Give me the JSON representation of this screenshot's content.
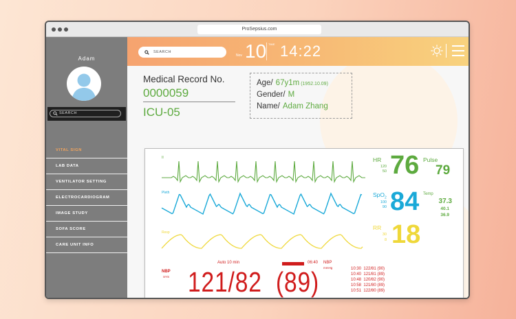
{
  "browser": {
    "url": "ProSepsius.com"
  },
  "sidebar": {
    "user_name": "Adam",
    "search_placeholder": "SEARCH",
    "items": [
      {
        "label": "VITAL SIGN",
        "active": true
      },
      {
        "label": "LAB DATA"
      },
      {
        "label": "VENTILATOR SETTING"
      },
      {
        "label": "ELECTROCARDIOGRAM"
      },
      {
        "label": "IMAGE STUDY"
      },
      {
        "label": "SOFA SCORE"
      },
      {
        "label": "CARE UNIT INFO"
      }
    ]
  },
  "header": {
    "search_placeholder": "SEARCH",
    "month": "Nov",
    "day": "10",
    "time_label": "TIME",
    "time": "14:22",
    "icons": [
      "sun-icon",
      "menu-icon"
    ]
  },
  "record": {
    "label": "Medical Record No.",
    "number": "0000059",
    "unit": "ICU-05"
  },
  "patient": {
    "age_label": "Age/",
    "age": "67y1m",
    "dob": "(1952.10.09)",
    "gender_label": "Gender/",
    "gender": "M",
    "name_label": "Name/",
    "name": "Adam Zhang"
  },
  "monitor": {
    "waves": {
      "ecg": "II",
      "pleth": "Pleth",
      "resp": "Resp"
    },
    "hr": {
      "label": "HR",
      "high": "120",
      "low": "50",
      "value": "76"
    },
    "pulse": {
      "label": "Pulse",
      "value": "79"
    },
    "spo2": {
      "label": "SpO",
      "sub": "2",
      "high": "100",
      "low": "90",
      "value": "84"
    },
    "temp": {
      "label": "Temp",
      "values": [
        "37.3",
        "40.1",
        "36.9"
      ]
    },
    "rr": {
      "label": "RR",
      "high": "30",
      "low": "8",
      "value": "18"
    },
    "nbp": {
      "label": "NBP",
      "sys_label": "SYS",
      "mode": "Auto 10 min",
      "value": "121/82",
      "mean": "(89)",
      "last_time": "06:40",
      "right_label": "NBP",
      "unit": "mmHg",
      "history": [
        {
          "time": "10:30",
          "reading": "122/81 (90)"
        },
        {
          "time": "10:40",
          "reading": "121/81 (89)"
        },
        {
          "time": "10:48",
          "reading": "120/82 (90)"
        },
        {
          "time": "10:58",
          "reading": "121/80 (89)"
        },
        {
          "time": "10:51",
          "reading": "122/80 (89)"
        }
      ]
    }
  },
  "colors": {
    "green": "#5daa3f",
    "blue": "#1aa9d8",
    "yellow": "#efd83a",
    "red": "#d01c1c",
    "orange": "#f5a55c",
    "sidebar": "#7d7d7d"
  }
}
